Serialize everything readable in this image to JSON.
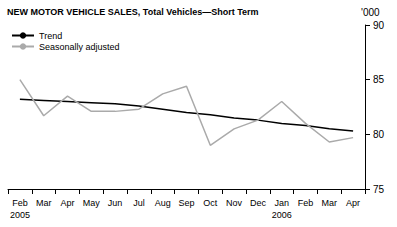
{
  "chart_data": {
    "type": "line",
    "title": "NEW MOTOR VEHICLE SALES, Total Vehicles—Short Term",
    "ylabel": "'000",
    "categories": [
      "Feb\n2005",
      "Mar",
      "Apr",
      "May",
      "Jun",
      "Jul",
      "Aug",
      "Sep",
      "Oct",
      "Nov",
      "Dec",
      "Jan\n2006",
      "Feb",
      "Mar",
      "Apr"
    ],
    "series": [
      {
        "name": "Trend",
        "color": "#000000",
        "values": [
          83.2,
          83.1,
          83.0,
          82.9,
          82.8,
          82.6,
          82.3,
          82.0,
          81.8,
          81.5,
          81.3,
          81.0,
          80.8,
          80.5,
          80.3
        ]
      },
      {
        "name": "Seasonally adjusted",
        "color": "#aaaaaa",
        "values": [
          85.0,
          81.7,
          83.5,
          82.1,
          82.1,
          82.3,
          83.7,
          84.4,
          79.0,
          80.5,
          81.3,
          83.0,
          81.0,
          79.3,
          79.7
        ]
      }
    ],
    "ylim": [
      75,
      90
    ],
    "yticks": [
      75,
      80,
      85,
      90
    ],
    "grid": false,
    "legend": "top-left"
  }
}
